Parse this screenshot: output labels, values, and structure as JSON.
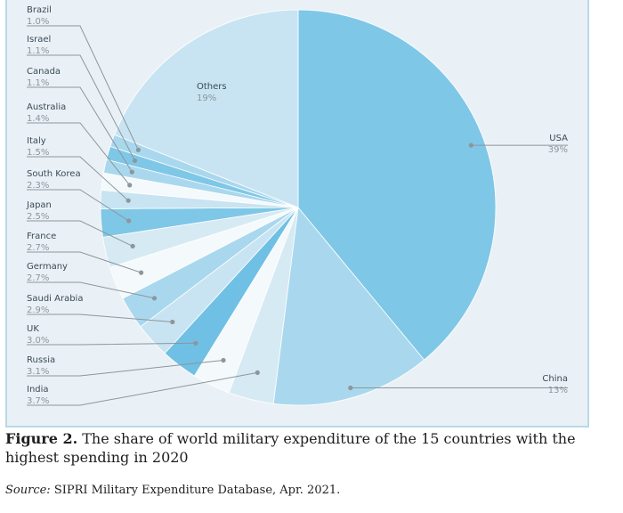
{
  "caption": {
    "label": "Figure 2.",
    "text": "The share of world military expenditure of the 15 countries with the highest spending in 2020"
  },
  "source": {
    "label": "Source:",
    "text": "SIPRI Military Expenditure Database, Apr. 2021."
  },
  "chart_data": {
    "type": "pie",
    "title": "",
    "slices": [
      {
        "label": "USA",
        "value_text": "39%",
        "value": 39,
        "color": "#7fc7e6"
      },
      {
        "label": "China",
        "value_text": "13%",
        "value": 13,
        "color": "#a9d8ee"
      },
      {
        "label": "India",
        "value_text": "3.7%",
        "value": 3.7,
        "color": "#d6eaf4"
      },
      {
        "label": "Russia",
        "value_text": "3.1%",
        "value": 3.1,
        "color": "#f4f9fc"
      },
      {
        "label": "UK",
        "value_text": "3.0%",
        "value": 3.0,
        "color": "#6fc0e4"
      },
      {
        "label": "Saudi Arabia",
        "value_text": "2.9%",
        "value": 2.9,
        "color": "#c8e4f2"
      },
      {
        "label": "Germany",
        "value_text": "2.7%",
        "value": 2.7,
        "color": "#a9d8ee"
      },
      {
        "label": "France",
        "value_text": "2.7%",
        "value": 2.7,
        "color": "#f4f9fc"
      },
      {
        "label": "Japan",
        "value_text": "2.5%",
        "value": 2.5,
        "color": "#d6eaf4"
      },
      {
        "label": "South Korea",
        "value_text": "2.3%",
        "value": 2.3,
        "color": "#7fc7e6"
      },
      {
        "label": "Italy",
        "value_text": "1.5%",
        "value": 1.5,
        "color": "#c8e4f2"
      },
      {
        "label": "Australia",
        "value_text": "1.4%",
        "value": 1.4,
        "color": "#f4f9fc"
      },
      {
        "label": "Canada",
        "value_text": "1.1%",
        "value": 1.1,
        "color": "#a9d8ee"
      },
      {
        "label": "Israel",
        "value_text": "1.1%",
        "value": 1.1,
        "color": "#7fc7e6"
      },
      {
        "label": "Brazil",
        "value_text": "1.0%",
        "value": 1.0,
        "color": "#a9d8ee"
      },
      {
        "label": "Others",
        "value_text": "19%",
        "value": 19,
        "color": "#c8e4f2"
      }
    ],
    "colors": {
      "leader": "#8c969c",
      "dot": "#8c969c",
      "panel_bg": "#eaf1f6"
    }
  }
}
